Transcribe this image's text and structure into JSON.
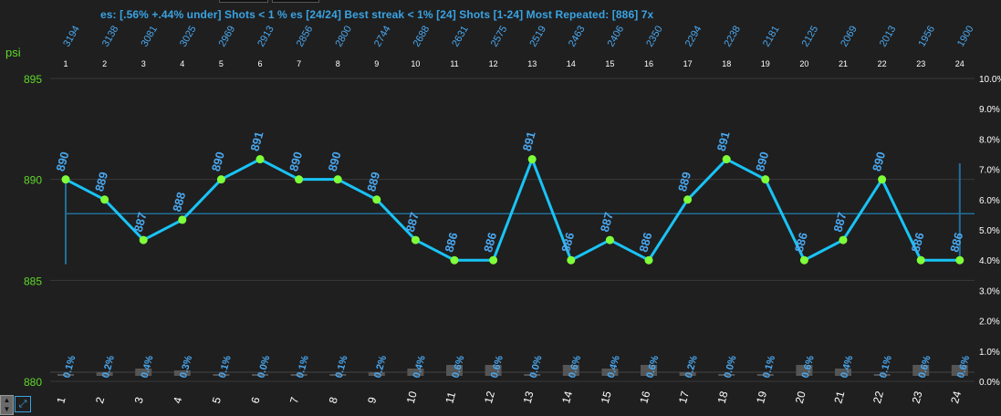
{
  "header": {
    "summary": "es: [.56% +.44% under] Shots < 1 % es [24/24] Best streak < 1% [24] Shots [1-24] Most Repeated: [886] 7x"
  },
  "chart_data": {
    "type": "line",
    "ylabel": "psi",
    "ylim": [
      880,
      895
    ],
    "yticks": [
      880,
      885,
      890,
      895
    ],
    "y2lim": [
      0,
      10
    ],
    "y2ticks": [
      "0.0%",
      "1.0%",
      "2.0%",
      "3.0%",
      "4.0%",
      "5.0%",
      "6.0%",
      "7.0%",
      "8.0%",
      "9.0%",
      "10.0%"
    ],
    "x": [
      1,
      2,
      3,
      4,
      5,
      6,
      7,
      8,
      9,
      10,
      11,
      12,
      13,
      14,
      15,
      16,
      17,
      18,
      19,
      20,
      21,
      22,
      23,
      24
    ],
    "top_labels": [
      "3194",
      "3138",
      "3081",
      "3025",
      "2969",
      "2913",
      "2856",
      "2800",
      "2744",
      "2688",
      "2631",
      "2575",
      "2519",
      "2463",
      "2406",
      "2350",
      "2294",
      "2238",
      "2181",
      "2125",
      "2069",
      "2013",
      "1956",
      "1900"
    ],
    "series": [
      {
        "values": [
          890,
          889,
          887,
          888,
          890,
          891,
          890,
          890,
          889,
          887,
          886,
          886,
          891,
          886,
          887,
          886,
          889,
          891,
          890,
          886,
          887,
          890,
          886,
          886
        ]
      }
    ],
    "average": 888.3,
    "range_bars": [
      {
        "x": 1,
        "low": 885.8,
        "high": 890
      },
      {
        "x": 24,
        "low": 886,
        "high": 890.8
      }
    ],
    "percent_labels": [
      "0.1%",
      "0.2%",
      "0.4%",
      "0.3%",
      "0.1%",
      "0.0%",
      "0.1%",
      "0.1%",
      "0.2%",
      "0.4%",
      "0.6%",
      "0.6%",
      "0.0%",
      "0.6%",
      "0.4%",
      "0.6%",
      "0.2%",
      "0.0%",
      "0.1%",
      "0.6%",
      "0.4%",
      "0.1%",
      "0.6%",
      "0.6%"
    ],
    "percent_values": [
      0.1,
      0.2,
      0.4,
      0.3,
      0.1,
      0.0,
      0.1,
      0.1,
      0.2,
      0.4,
      0.6,
      0.6,
      0.0,
      0.6,
      0.4,
      0.6,
      0.2,
      0.0,
      0.1,
      0.6,
      0.4,
      0.1,
      0.6,
      0.6
    ],
    "grid": true,
    "colors": {
      "line": "#19c3f5",
      "marker": "#7fff3a",
      "value_label": "#4aa8f0",
      "psi_axis": "#5fd82a",
      "pct_axis": "#ffffff",
      "average": "#1f6f9a",
      "bars": "#555555"
    }
  },
  "controls": {
    "corner_icon": "up-down-arrow",
    "expand_icon": "expand-arrows"
  }
}
